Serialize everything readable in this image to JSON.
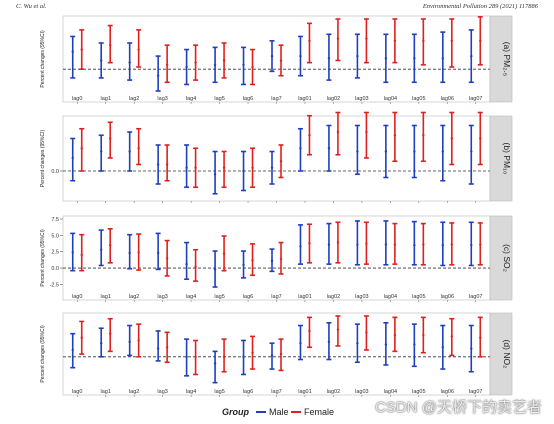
{
  "header": {
    "left": "C. Wu et al.",
    "right": "Environmental Pollution 289 (2021) 117886"
  },
  "colors": {
    "male": "#1f3fbf",
    "female": "#e0201f",
    "strip": "#d9d9d9",
    "ref_line": "#333333"
  },
  "legend": {
    "title": "Group",
    "male": "Male",
    "female": "Female"
  },
  "watermark": "CSDN @天桥下的卖艺者",
  "chart_data": [
    {
      "type": "errorbar",
      "panel_label": "(a) PM₂.₅",
      "ylabel": "Percent changes (95%CI)",
      "categories": [
        "lag0",
        "lag1",
        "lag2",
        "lag3",
        "lag4",
        "lag5",
        "lag6",
        "lag7",
        "lag01",
        "lag02",
        "lag03",
        "lag04",
        "lag05",
        "lag06",
        "lag07"
      ],
      "show_tick_labels": true,
      "yticks": [],
      "ylim": [
        -1.0,
        2.3
      ],
      "reference_line": 0,
      "series": [
        {
          "name": "Male",
          "est": [
            0.8,
            0.4,
            0.3,
            -0.3,
            0.1,
            0.2,
            0.2,
            0.6,
            0.6,
            0.5,
            0.6,
            0.5,
            0.5,
            0.5,
            0.6
          ],
          "lo": [
            -0.4,
            -0.4,
            -0.5,
            -1.0,
            -0.7,
            -0.6,
            -0.7,
            -0.1,
            -0.3,
            -0.5,
            -0.4,
            -0.6,
            -0.6,
            -0.6,
            -0.6
          ],
          "hi": [
            1.5,
            1.2,
            1.2,
            0.6,
            0.9,
            1.0,
            1.0,
            1.3,
            1.5,
            1.6,
            1.6,
            1.6,
            1.6,
            1.7,
            1.8
          ]
        },
        {
          "name": "Female",
          "est": [
            0.9,
            1.1,
            0.9,
            0.2,
            0.3,
            0.4,
            0.1,
            0.4,
            1.3,
            1.4,
            1.4,
            1.3,
            1.3,
            1.3,
            1.3
          ],
          "lo": [
            0.0,
            0.3,
            0.1,
            -0.6,
            -0.5,
            -0.4,
            -0.7,
            -0.3,
            0.3,
            0.4,
            0.3,
            0.3,
            0.2,
            0.1,
            0.2
          ],
          "hi": [
            1.8,
            2.0,
            1.8,
            1.1,
            1.1,
            1.2,
            0.9,
            1.1,
            2.1,
            2.3,
            2.3,
            2.3,
            2.3,
            2.3,
            2.4
          ]
        }
      ]
    },
    {
      "type": "errorbar",
      "panel_label": "(b) PM₁₀",
      "ylabel": "Percent changes (95%CI)",
      "categories": [
        "lag0",
        "lag1",
        "lag2",
        "lag3",
        "lag4",
        "lag5",
        "lag6",
        "lag7",
        "lag01",
        "lag02",
        "lag03",
        "lag04",
        "lag05",
        "lag06",
        "lag07"
      ],
      "show_tick_labels": false,
      "yticks": [
        0
      ],
      "ylim": [
        -0.8,
        1.6
      ],
      "reference_line": 0,
      "series": [
        {
          "name": "Male",
          "est": [
            0.4,
            0.6,
            0.6,
            0.2,
            0.1,
            -0.1,
            0.0,
            0.1,
            0.7,
            0.7,
            0.6,
            0.6,
            0.6,
            0.6,
            0.6
          ],
          "lo": [
            -0.3,
            0.0,
            0.0,
            -0.4,
            -0.5,
            -0.7,
            -0.6,
            -0.4,
            0.0,
            0.0,
            -0.1,
            -0.2,
            -0.2,
            -0.3,
            -0.4
          ],
          "hi": [
            1.0,
            1.1,
            1.2,
            0.8,
            0.8,
            0.6,
            0.6,
            0.6,
            1.3,
            1.4,
            1.4,
            1.4,
            1.4,
            1.4,
            1.4
          ]
        },
        {
          "name": "Female",
          "est": [
            0.7,
            1.0,
            0.7,
            0.2,
            0.1,
            0.1,
            0.1,
            0.3,
            1.1,
            1.2,
            1.2,
            1.1,
            1.1,
            1.0,
            1.0
          ],
          "lo": [
            0.0,
            0.4,
            0.2,
            -0.3,
            -0.5,
            -0.5,
            -0.5,
            -0.2,
            0.5,
            0.5,
            0.4,
            0.3,
            0.3,
            0.2,
            0.2
          ],
          "hi": [
            1.3,
            1.5,
            1.3,
            0.8,
            0.7,
            0.6,
            0.7,
            0.8,
            1.7,
            1.8,
            1.8,
            1.8,
            1.8,
            1.8,
            1.8
          ]
        }
      ]
    },
    {
      "type": "errorbar",
      "panel_label": "(c) SO₂",
      "ylabel": "Percent changes (95%CI)",
      "categories": [
        "lag0",
        "lag1",
        "lag2",
        "lag3",
        "lag4",
        "lag5",
        "lag6",
        "lag7",
        "lag01",
        "lag02",
        "lag03",
        "lag04",
        "lag05",
        "lag06",
        "lag07"
      ],
      "show_tick_labels": true,
      "yticks": [
        7.5,
        5.0,
        2.5,
        0.0,
        -2.5
      ],
      "ylim": [
        -3.2,
        7.5
      ],
      "reference_line": 0,
      "series": [
        {
          "name": "Male",
          "est": [
            2.4,
            2.8,
            2.3,
            2.3,
            0.6,
            -0.2,
            0.5,
            1.1,
            3.3,
            3.6,
            3.6,
            3.6,
            3.5,
            3.5,
            3.5
          ],
          "lo": [
            -0.4,
            0.4,
            -0.1,
            -0.2,
            -1.7,
            -2.9,
            -1.5,
            -0.5,
            0.6,
            0.6,
            0.5,
            0.5,
            0.5,
            0.4,
            0.4
          ],
          "hi": [
            5.3,
            5.8,
            5.1,
            5.3,
            3.9,
            2.6,
            2.6,
            2.9,
            6.6,
            6.8,
            7.2,
            7.2,
            7.1,
            7.0,
            7.0
          ]
        },
        {
          "name": "Female",
          "est": [
            2.0,
            3.5,
            2.4,
            1.5,
            0.2,
            2.2,
            1.2,
            1.4,
            3.8,
            3.9,
            3.7,
            3.6,
            3.6,
            3.6,
            3.6
          ],
          "lo": [
            -0.4,
            0.8,
            -0.3,
            -1.2,
            -2.0,
            -0.4,
            -1.1,
            -0.9,
            0.8,
            0.8,
            0.6,
            0.6,
            0.5,
            0.5,
            0.5
          ],
          "hi": [
            5.1,
            6.0,
            5.2,
            4.2,
            2.8,
            4.9,
            3.7,
            3.9,
            6.7,
            7.0,
            7.0,
            6.8,
            6.8,
            6.9,
            6.9
          ]
        }
      ]
    },
    {
      "type": "errorbar",
      "panel_label": "(d) NO₂",
      "ylabel": "Percent changes (95%CI)",
      "categories": [
        "lag0",
        "lag1",
        "lag2",
        "lag3",
        "lag4",
        "lag5",
        "lag6",
        "lag7",
        "lag01",
        "lag02",
        "lag03",
        "lag04",
        "lag05",
        "lag06",
        "lag07"
      ],
      "show_tick_labels": true,
      "yticks": [],
      "ylim": [
        -2.0,
        3.0
      ],
      "reference_line": 0,
      "series": [
        {
          "name": "Male",
          "est": [
            0.5,
            1.0,
            1.1,
            0.6,
            0.0,
            -0.5,
            0.0,
            0.1,
            1.0,
            1.1,
            1.0,
            0.9,
            0.9,
            0.7,
            0.6
          ],
          "lo": [
            -0.8,
            0.0,
            0.1,
            -0.3,
            -1.4,
            -1.9,
            -1.3,
            -0.9,
            -0.2,
            -0.2,
            -0.4,
            -0.6,
            -0.7,
            -0.9,
            -1.1
          ],
          "hi": [
            1.7,
            2.1,
            2.3,
            1.9,
            1.3,
            0.4,
            1.2,
            1.0,
            2.3,
            2.5,
            2.4,
            2.5,
            2.4,
            2.3,
            2.3
          ]
        },
        {
          "name": "Female",
          "est": [
            1.4,
            1.7,
            1.2,
            0.7,
            0.0,
            0.0,
            0.3,
            0.2,
            1.9,
            2.0,
            1.8,
            1.6,
            1.6,
            1.5,
            1.4
          ],
          "lo": [
            0.2,
            0.4,
            0.0,
            -0.4,
            -1.3,
            -1.1,
            -0.9,
            -1.0,
            0.7,
            0.8,
            0.5,
            0.4,
            0.3,
            0.1,
            0.0
          ],
          "hi": [
            2.6,
            2.8,
            2.4,
            1.8,
            1.2,
            1.3,
            1.5,
            1.3,
            2.9,
            3.0,
            3.0,
            2.9,
            2.9,
            2.8,
            2.9
          ]
        }
      ]
    }
  ]
}
